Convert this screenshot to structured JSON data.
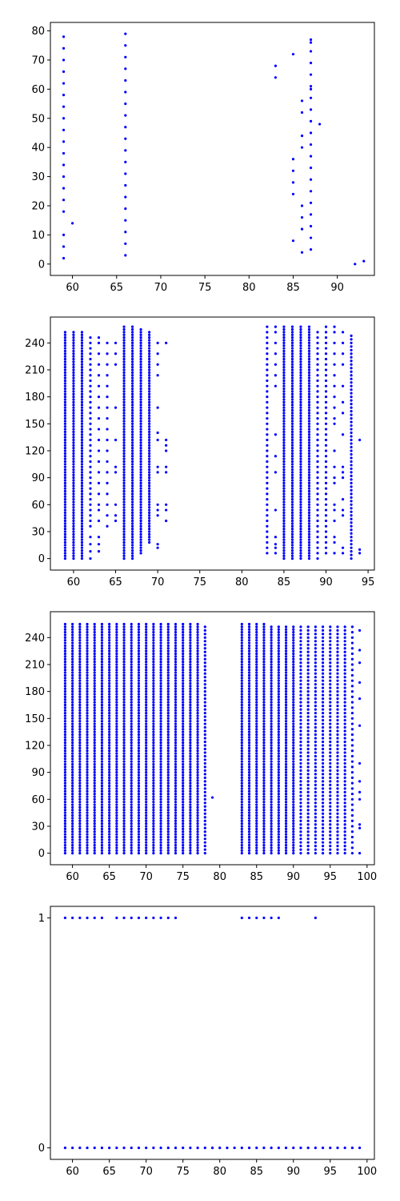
{
  "chart_data": [
    {
      "type": "scatter",
      "title": "",
      "xlabel": "",
      "ylabel": "",
      "xlim": [
        57.5,
        94.2
      ],
      "ylim": [
        -3.9,
        82.9
      ],
      "xticks": [
        60,
        65,
        70,
        75,
        80,
        85,
        90
      ],
      "yticks": [
        0,
        10,
        20,
        30,
        40,
        50,
        60,
        70,
        80
      ],
      "color": "#0000ff",
      "grid": false,
      "points": [
        [
          59,
          2
        ],
        [
          59,
          6
        ],
        [
          59,
          10
        ],
        [
          59,
          18
        ],
        [
          59,
          22
        ],
        [
          59,
          26
        ],
        [
          59,
          30
        ],
        [
          59,
          34
        ],
        [
          59,
          38
        ],
        [
          59,
          42
        ],
        [
          59,
          46
        ],
        [
          59,
          50
        ],
        [
          59,
          54
        ],
        [
          59,
          58
        ],
        [
          59,
          62
        ],
        [
          59,
          66
        ],
        [
          59,
          70
        ],
        [
          59,
          74
        ],
        [
          59,
          78
        ],
        [
          60,
          14
        ],
        [
          66,
          3
        ],
        [
          66,
          7
        ],
        [
          66,
          11
        ],
        [
          66,
          15
        ],
        [
          66,
          19
        ],
        [
          66,
          23
        ],
        [
          66,
          27
        ],
        [
          66,
          31
        ],
        [
          66,
          35
        ],
        [
          66,
          39
        ],
        [
          66,
          43
        ],
        [
          66,
          47
        ],
        [
          66,
          51
        ],
        [
          66,
          55
        ],
        [
          66,
          59
        ],
        [
          66,
          63
        ],
        [
          66,
          67
        ],
        [
          66,
          71
        ],
        [
          66,
          75
        ],
        [
          66,
          79
        ],
        [
          83,
          64
        ],
        [
          83,
          68
        ],
        [
          85,
          8
        ],
        [
          85,
          24
        ],
        [
          85,
          28
        ],
        [
          85,
          32
        ],
        [
          85,
          36
        ],
        [
          85,
          72
        ],
        [
          86,
          4
        ],
        [
          86,
          12
        ],
        [
          86,
          16
        ],
        [
          86,
          20
        ],
        [
          86,
          40
        ],
        [
          86,
          44
        ],
        [
          86,
          52
        ],
        [
          86,
          56
        ],
        [
          87,
          5
        ],
        [
          87,
          9
        ],
        [
          87,
          13
        ],
        [
          87,
          17
        ],
        [
          87,
          21
        ],
        [
          87,
          25
        ],
        [
          87,
          29
        ],
        [
          87,
          33
        ],
        [
          87,
          37
        ],
        [
          87,
          41
        ],
        [
          87,
          45
        ],
        [
          87,
          49
        ],
        [
          87,
          53
        ],
        [
          87,
          57
        ],
        [
          87,
          60
        ],
        [
          87,
          61
        ],
        [
          87,
          65
        ],
        [
          87,
          69
        ],
        [
          87,
          73
        ],
        [
          87,
          76
        ],
        [
          87,
          77
        ],
        [
          88,
          48
        ],
        [
          92,
          0
        ],
        [
          93,
          1
        ]
      ]
    },
    {
      "type": "scatter",
      "title": "",
      "xlabel": "",
      "ylabel": "",
      "xlim": [
        57.25,
        95.75
      ],
      "ylim": [
        -12.8,
        268.8
      ],
      "xticks": [
        60,
        65,
        70,
        75,
        80,
        85,
        90,
        95
      ],
      "yticks": [
        0,
        30,
        60,
        90,
        120,
        150,
        180,
        210,
        240
      ],
      "color": "#0000ff",
      "grid": false,
      "columns": [
        {
          "x": 59,
          "ys": "0-254:3"
        },
        {
          "x": 60,
          "ys": "0-254:3"
        },
        {
          "x": 61,
          "ys": "0-254:3"
        },
        {
          "x": 62,
          "ys": "0,8,16,24,36,42,48,54,60,66,72,78,84,90,96,102,108,114,120,126,132,138,144,150,156,162,168,174,180,186,192,198,204,210,216,222,228,234,240,246"
        },
        {
          "x": 63,
          "ys": "8,16,24,42,54,60,72,84,96,108,120,132,144,156,168,180,192,204,216,228,240,246"
        },
        {
          "x": 64,
          "ys": "36,48,60,72,84,96,108,120,132,144,156,168,180,192,204,216,228,240"
        },
        {
          "x": 65,
          "ys": "42,48,60,96,102,132,168,216,228,240"
        },
        {
          "x": 66,
          "ys": "0-258:3"
        },
        {
          "x": 67,
          "ys": "0-258:3"
        },
        {
          "x": 68,
          "ys": "6-256:3"
        },
        {
          "x": 69,
          "ys": "18-252:3"
        },
        {
          "x": 70,
          "ys": "12,16,48,54,60,96,102,132,140,168,204,216,228,240"
        },
        {
          "x": 71,
          "ys": "42,54,60,96,102,120,126,132,240"
        },
        {
          "x": 83,
          "ys": "6-258:6"
        },
        {
          "x": 84,
          "ys": "6,12,16,24,54,96,114,138,192,204,216,228,240,252,258"
        },
        {
          "x": 85,
          "ys": "0-258:3"
        },
        {
          "x": 86,
          "ys": "0-258:3"
        },
        {
          "x": 87,
          "ys": "0-258:3"
        },
        {
          "x": 88,
          "ys": "0-258:3"
        },
        {
          "x": 89,
          "ys": "0-254:6"
        },
        {
          "x": 90,
          "ys": "6-258:6"
        },
        {
          "x": 91,
          "ys": "6,18,24,42,54,60,84,90,102,120,150,156,168,180,192,204,216,228,240,252,258"
        },
        {
          "x": 92,
          "ys": "6,12,48,54,66,90,96,102,138,162,174,192,216,228,240,252"
        },
        {
          "x": 93,
          "ys": "0-250:4"
        },
        {
          "x": 94,
          "ys": "6,10,132"
        }
      ]
    },
    {
      "type": "scatter",
      "title": "",
      "xlabel": "",
      "ylabel": "",
      "xlim": [
        57.0,
        101.0
      ],
      "ylim": [
        -12.8,
        268.8
      ],
      "xticks": [
        60,
        65,
        70,
        75,
        80,
        85,
        90,
        95,
        100
      ],
      "yticks": [
        0,
        30,
        60,
        90,
        120,
        150,
        180,
        210,
        240
      ],
      "color": "#0000ff",
      "grid": false,
      "columns": [
        {
          "x": 59,
          "ys": "0-255:3"
        },
        {
          "x": 60,
          "ys": "0-255:3"
        },
        {
          "x": 61,
          "ys": "0-255:3"
        },
        {
          "x": 62,
          "ys": "0-255:3"
        },
        {
          "x": 63,
          "ys": "0-255:3"
        },
        {
          "x": 64,
          "ys": "0-255:3"
        },
        {
          "x": 65,
          "ys": "0-255:3"
        },
        {
          "x": 66,
          "ys": "0-255:3"
        },
        {
          "x": 67,
          "ys": "0-255:3"
        },
        {
          "x": 68,
          "ys": "0-255:3"
        },
        {
          "x": 69,
          "ys": "0-255:3"
        },
        {
          "x": 70,
          "ys": "0-255:3"
        },
        {
          "x": 71,
          "ys": "0-255:3"
        },
        {
          "x": 72,
          "ys": "0-255:3"
        },
        {
          "x": 73,
          "ys": "0-255:3"
        },
        {
          "x": 74,
          "ys": "0-255:3"
        },
        {
          "x": 75,
          "ys": "0-255:3"
        },
        {
          "x": 76,
          "ys": "0-255:3"
        },
        {
          "x": 77,
          "ys": "0-255:3"
        },
        {
          "x": 78,
          "ys": "0-252:4"
        },
        {
          "x": 79,
          "ys": "62"
        },
        {
          "x": 83,
          "ys": "0-255:3"
        },
        {
          "x": 84,
          "ys": "0-255:3"
        },
        {
          "x": 85,
          "ys": "0-255:3"
        },
        {
          "x": 86,
          "ys": "0-255:3"
        },
        {
          "x": 87,
          "ys": "0-252:3"
        },
        {
          "x": 88,
          "ys": "0-252:3"
        },
        {
          "x": 89,
          "ys": "0-252:3"
        },
        {
          "x": 90,
          "ys": "0-252:3"
        },
        {
          "x": 91,
          "ys": "0-252:4"
        },
        {
          "x": 92,
          "ys": "0-252:4"
        },
        {
          "x": 93,
          "ys": "0-252:4"
        },
        {
          "x": 94,
          "ys": "0-252:4"
        },
        {
          "x": 95,
          "ys": "0-252:4"
        },
        {
          "x": 96,
          "ys": "0-252:4"
        },
        {
          "x": 97,
          "ys": "0-252:4"
        },
        {
          "x": 98,
          "ys": "0-252:6"
        },
        {
          "x": 99,
          "ys": "0,28,32,60,68,80,100,142,172,190,212,226,248"
        }
      ]
    },
    {
      "type": "scatter",
      "title": "",
      "xlabel": "",
      "ylabel": "",
      "xlim": [
        57.0,
        101.0
      ],
      "ylim": [
        -0.05,
        1.05
      ],
      "xticks": [
        60,
        65,
        70,
        75,
        80,
        85,
        90,
        95,
        100
      ],
      "yticks": [
        0,
        1
      ],
      "color": "#0000ff",
      "grid": false,
      "columns": [
        {
          "x": 59,
          "ys": "0,1"
        },
        {
          "x": 60,
          "ys": "0,1"
        },
        {
          "x": 61,
          "ys": "0,1"
        },
        {
          "x": 62,
          "ys": "0,1"
        },
        {
          "x": 63,
          "ys": "0,1"
        },
        {
          "x": 64,
          "ys": "0,1"
        },
        {
          "x": 65,
          "ys": "0"
        },
        {
          "x": 66,
          "ys": "0,1"
        },
        {
          "x": 67,
          "ys": "0,1"
        },
        {
          "x": 68,
          "ys": "0,1"
        },
        {
          "x": 69,
          "ys": "0,1"
        },
        {
          "x": 70,
          "ys": "0,1"
        },
        {
          "x": 71,
          "ys": "0,1"
        },
        {
          "x": 72,
          "ys": "0,1"
        },
        {
          "x": 73,
          "ys": "0,1"
        },
        {
          "x": 74,
          "ys": "0,1"
        },
        {
          "x": 75,
          "ys": "0"
        },
        {
          "x": 76,
          "ys": "0"
        },
        {
          "x": 77,
          "ys": "0"
        },
        {
          "x": 78,
          "ys": "0"
        },
        {
          "x": 79,
          "ys": "0"
        },
        {
          "x": 80,
          "ys": "0"
        },
        {
          "x": 81,
          "ys": "0"
        },
        {
          "x": 82,
          "ys": "0"
        },
        {
          "x": 83,
          "ys": "0,1"
        },
        {
          "x": 84,
          "ys": "0,1"
        },
        {
          "x": 85,
          "ys": "0,1"
        },
        {
          "x": 86,
          "ys": "0,1"
        },
        {
          "x": 87,
          "ys": "0,1"
        },
        {
          "x": 88,
          "ys": "0,1"
        },
        {
          "x": 89,
          "ys": "0"
        },
        {
          "x": 90,
          "ys": "0"
        },
        {
          "x": 91,
          "ys": "0"
        },
        {
          "x": 92,
          "ys": "0"
        },
        {
          "x": 93,
          "ys": "0,1"
        },
        {
          "x": 94,
          "ys": "0"
        },
        {
          "x": 95,
          "ys": "0"
        },
        {
          "x": 96,
          "ys": "0"
        },
        {
          "x": 97,
          "ys": "0"
        },
        {
          "x": 98,
          "ys": "0"
        },
        {
          "x": 99,
          "ys": "0"
        }
      ]
    }
  ]
}
